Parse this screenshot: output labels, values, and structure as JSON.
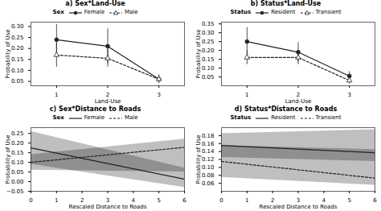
{
  "chart_data": [
    {
      "type": "line",
      "title": "a) Sex*Land-Use",
      "legend_title": "Sex",
      "xlabel": "Land-Use",
      "ylabel": "Probability of Use",
      "x": [
        1,
        2,
        3
      ],
      "xlim": [
        0.5,
        3.5
      ],
      "xticks": [
        1,
        2,
        3
      ],
      "ylim": [
        0.03,
        0.32
      ],
      "yticks": [
        0.05,
        {
          "value": 0.1,
          "label": "0.10"
        },
        0.15,
        {
          "value": 0.2,
          "label": "0.20"
        },
        0.25,
        {
          "value": 0.3,
          "label": "0.30"
        }
      ],
      "series": [
        {
          "name": "Female",
          "color": "#222222",
          "line_style": "solid",
          "marker": "circle",
          "values": [
            0.24,
            0.21,
            0.06
          ],
          "errors": [
            0.07,
            0.08,
            0.02
          ]
        },
        {
          "name": "Male",
          "color": "#222222",
          "line_style": "dashed",
          "marker": "triangle",
          "values": [
            0.17,
            0.155,
            0.06
          ],
          "errors": [
            0.055,
            0.04,
            0.015
          ]
        }
      ]
    },
    {
      "type": "line",
      "title": "b) Status*Land-Use",
      "legend_title": "Status",
      "xlabel": "Land-Use",
      "ylabel": "Probability of Use",
      "x": [
        1,
        2,
        3
      ],
      "xlim": [
        0.5,
        3.5
      ],
      "xticks": [
        1,
        2,
        3
      ],
      "ylim": [
        0.0,
        0.36
      ],
      "yticks": [
        0.05,
        {
          "value": 0.1,
          "label": "0.10"
        },
        0.15,
        {
          "value": 0.2,
          "label": "0.20"
        },
        0.25,
        {
          "value": 0.3,
          "label": "0.30"
        },
        0.35
      ],
      "series": [
        {
          "name": "Resident",
          "color": "#222222",
          "line_style": "solid",
          "marker": "circle",
          "values": [
            0.25,
            0.19,
            0.055
          ],
          "errors": [
            0.08,
            0.055,
            0.025
          ]
        },
        {
          "name": "Transient",
          "color": "#222222",
          "line_style": "dashed",
          "marker": "triangle",
          "values": [
            0.16,
            0.16,
            0.03
          ],
          "errors": [
            0.04,
            0.04,
            0.02
          ]
        }
      ]
    },
    {
      "type": "line",
      "title": "c) Sex*Distance to Roads",
      "legend_title": "Sex",
      "xlabel": "Rescaled Distance to Roads",
      "ylabel": "Probability of Use",
      "x": [
        0,
        6
      ],
      "xlim": [
        0,
        6
      ],
      "xticks": [
        0,
        1,
        2,
        3,
        4,
        5,
        6
      ],
      "ylim": [
        -0.05,
        0.28
      ],
      "yticks": [
        {
          "value": -0.05,
          "label": "−0.05"
        },
        {
          "value": 0,
          "label": "0.00"
        },
        0.05,
        {
          "value": 0.1,
          "label": "0.10"
        },
        0.15,
        {
          "value": 0.2,
          "label": "0.20"
        },
        0.25
      ],
      "series": [
        {
          "name": "Female",
          "color": "#222222",
          "line_style": "solid",
          "values": [
            0.175,
            0.013
          ],
          "ci_lower": [
            0.09,
            -0.03
          ],
          "ci_upper": [
            0.26,
            0.07
          ]
        },
        {
          "name": "Male",
          "color": "#222222",
          "line_style": "dashed",
          "values": [
            0.1,
            0.178
          ],
          "ci_lower": [
            0.06,
            0.05
          ],
          "ci_upper": [
            0.14,
            0.22
          ]
        }
      ]
    },
    {
      "type": "line",
      "title": "d) Status*Distance to Roads",
      "legend_title": "Status",
      "xlabel": "Rescaled Distance to Roads",
      "ylabel": "Probability of Use",
      "x": [
        0,
        6
      ],
      "xlim": [
        0,
        6
      ],
      "xticks": [
        0,
        1,
        2,
        3,
        4,
        5,
        6
      ],
      "ylim": [
        0.04,
        0.2
      ],
      "yticks": [
        0.06,
        0.08,
        {
          "value": 0.1,
          "label": "0.10"
        },
        0.12,
        0.14,
        0.16,
        0.18
      ],
      "series": [
        {
          "name": "Resident",
          "color": "#222222",
          "line_style": "solid",
          "values": [
            0.155,
            0.137
          ],
          "ci_lower": [
            0.125,
            0.115
          ],
          "ci_upper": [
            0.185,
            0.195
          ]
        },
        {
          "name": "Transient",
          "color": "#222222",
          "line_style": "dashed",
          "values": [
            0.115,
            0.073
          ],
          "ci_lower": [
            0.075,
            0.055
          ],
          "ci_upper": [
            0.155,
            0.145
          ]
        }
      ]
    }
  ]
}
